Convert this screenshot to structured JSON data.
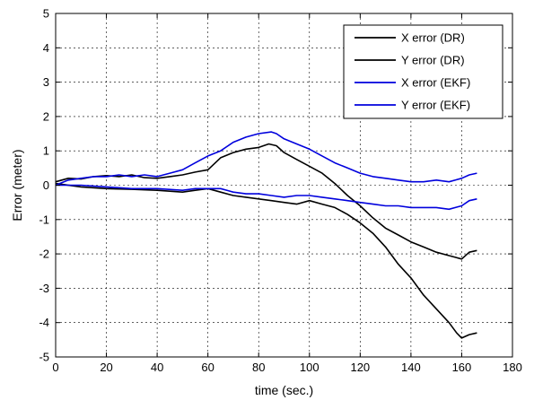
{
  "chart_data": {
    "type": "line",
    "xlabel": "time (sec.)",
    "ylabel": "Error (meter)",
    "xlim": [
      0,
      180
    ],
    "ylim": [
      -5,
      5
    ],
    "xticks": [
      0,
      20,
      40,
      60,
      80,
      100,
      120,
      140,
      160,
      180
    ],
    "yticks": [
      -5,
      -4,
      -3,
      -2,
      -1,
      0,
      1,
      2,
      3,
      4,
      5
    ],
    "grid": true,
    "legend_position": "top-right",
    "series": [
      {
        "name": "X error (DR)",
        "color": "#000000",
        "x": [
          0,
          5,
          10,
          15,
          20,
          25,
          30,
          35,
          40,
          45,
          50,
          55,
          60,
          65,
          70,
          75,
          80,
          84,
          87,
          90,
          95,
          100,
          105,
          110,
          115,
          120,
          125,
          130,
          135,
          140,
          145,
          150,
          155,
          160,
          163,
          166
        ],
        "y": [
          0.1,
          0.2,
          0.18,
          0.25,
          0.28,
          0.25,
          0.3,
          0.22,
          0.2,
          0.25,
          0.3,
          0.38,
          0.45,
          0.8,
          0.95,
          1.05,
          1.1,
          1.2,
          1.15,
          0.95,
          0.75,
          0.55,
          0.35,
          0.05,
          -0.3,
          -0.6,
          -0.95,
          -1.25,
          -1.45,
          -1.65,
          -1.8,
          -1.95,
          -2.05,
          -2.15,
          -1.95,
          -1.9
        ]
      },
      {
        "name": "Y error (DR)",
        "color": "#000000",
        "x": [
          0,
          10,
          20,
          30,
          40,
          50,
          55,
          60,
          65,
          70,
          75,
          80,
          85,
          90,
          95,
          100,
          105,
          110,
          115,
          120,
          125,
          130,
          135,
          140,
          145,
          150,
          155,
          158,
          160,
          163,
          166
        ],
        "y": [
          0.05,
          -0.05,
          -0.1,
          -0.12,
          -0.15,
          -0.2,
          -0.15,
          -0.1,
          -0.2,
          -0.3,
          -0.35,
          -0.4,
          -0.45,
          -0.5,
          -0.55,
          -0.45,
          -0.55,
          -0.65,
          -0.85,
          -1.1,
          -1.4,
          -1.8,
          -2.3,
          -2.7,
          -3.2,
          -3.6,
          -4.0,
          -4.3,
          -4.45,
          -4.35,
          -4.3
        ]
      },
      {
        "name": "X error (EKF)",
        "color": "#0000dd",
        "x": [
          0,
          5,
          10,
          15,
          20,
          25,
          30,
          35,
          40,
          45,
          50,
          55,
          60,
          65,
          70,
          75,
          80,
          85,
          87,
          90,
          95,
          100,
          105,
          110,
          115,
          120,
          125,
          130,
          135,
          140,
          145,
          150,
          155,
          160,
          163,
          166
        ],
        "y": [
          0.0,
          0.15,
          0.2,
          0.25,
          0.25,
          0.3,
          0.25,
          0.3,
          0.25,
          0.35,
          0.45,
          0.65,
          0.85,
          1.0,
          1.25,
          1.4,
          1.5,
          1.55,
          1.5,
          1.35,
          1.2,
          1.05,
          0.85,
          0.65,
          0.5,
          0.35,
          0.25,
          0.2,
          0.15,
          0.1,
          0.1,
          0.15,
          0.1,
          0.2,
          0.3,
          0.35
        ]
      },
      {
        "name": "Y error (EKF)",
        "color": "#0000dd",
        "x": [
          0,
          10,
          20,
          30,
          40,
          50,
          55,
          60,
          65,
          70,
          75,
          80,
          85,
          90,
          95,
          100,
          105,
          110,
          115,
          120,
          125,
          130,
          135,
          140,
          145,
          150,
          155,
          160,
          163,
          166
        ],
        "y": [
          0.0,
          0.0,
          -0.05,
          -0.1,
          -0.1,
          -0.15,
          -0.1,
          -0.1,
          -0.1,
          -0.2,
          -0.25,
          -0.25,
          -0.3,
          -0.35,
          -0.3,
          -0.3,
          -0.35,
          -0.4,
          -0.45,
          -0.5,
          -0.55,
          -0.6,
          -0.6,
          -0.65,
          -0.65,
          -0.65,
          -0.7,
          -0.6,
          -0.45,
          -0.4
        ]
      }
    ]
  }
}
